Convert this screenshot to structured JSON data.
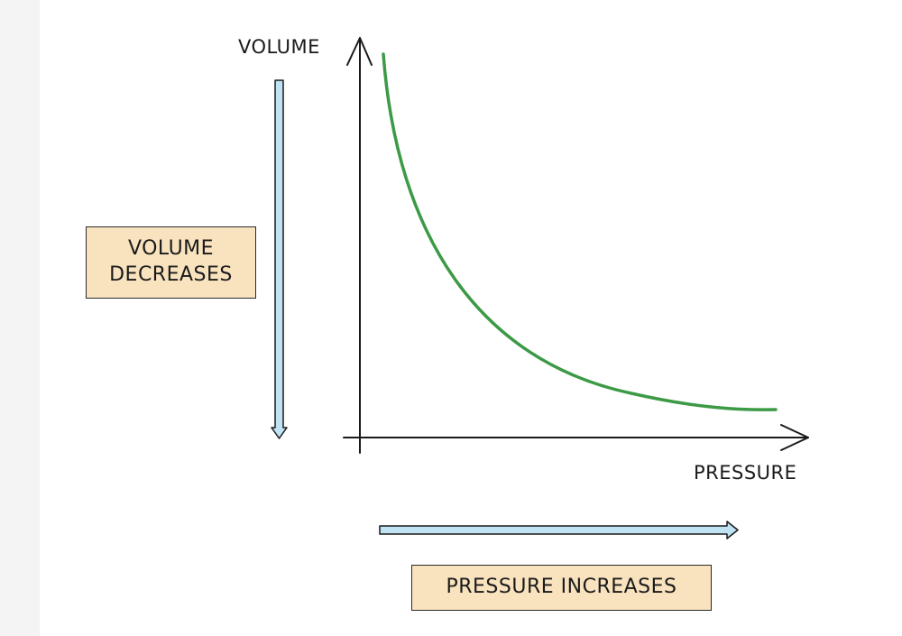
{
  "diagram": {
    "y_axis_label": "VOLUME",
    "x_axis_label": "PRESSURE",
    "volume_box": {
      "line1": "VOLUME",
      "line2": "DECREASES"
    },
    "pressure_box": "PRESSURE INCREASES",
    "colors": {
      "curve": "#3c9a46",
      "arrow_fill": "#bfe3f3",
      "box_fill": "#f9e3bf",
      "axis": "#1a1a1a"
    }
  }
}
